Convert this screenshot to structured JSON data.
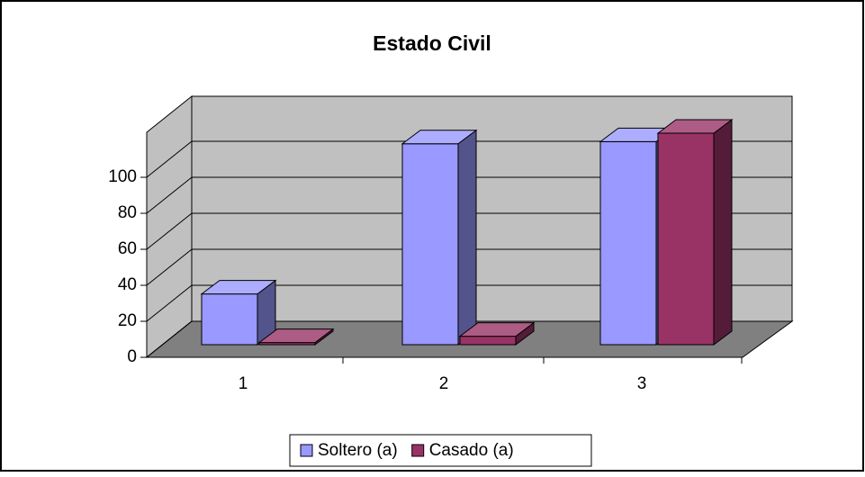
{
  "chart_data": {
    "type": "bar3d",
    "title": "Estado Civil",
    "categories": [
      "1",
      "2",
      "3"
    ],
    "series": [
      {
        "name": "Soltero (a)",
        "color": "#9999ff",
        "values": [
          24,
          95,
          96
        ]
      },
      {
        "name": "Casado (a)",
        "color": "#993366",
        "values": [
          1,
          4,
          100
        ]
      }
    ],
    "ylim": [
      0,
      100
    ],
    "yticks": [
      0,
      20,
      40,
      60,
      80,
      100
    ],
    "grid": true,
    "legend": "bottom"
  }
}
